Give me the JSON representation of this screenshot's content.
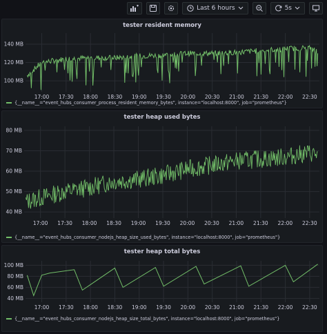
{
  "toolbar": {
    "time_range": "Last 6 hours",
    "refresh_interval": "5s",
    "icons": [
      "add-panel-icon",
      "save-icon",
      "settings-icon",
      "clock-icon",
      "chevron-down-icon",
      "zoom-out-icon",
      "refresh-icon",
      "chevron-down-icon",
      "monitor-icon"
    ]
  },
  "colors": {
    "series": "#73bf69",
    "grid": "#2a2d33",
    "panel": "#181b1f",
    "background": "#111217"
  },
  "chart_data": [
    {
      "type": "line",
      "title": "tester resident memory",
      "y_ticks": [
        "100 MB",
        "120 MB",
        "140 MB"
      ],
      "y_tick_values": [
        100,
        120,
        140
      ],
      "ylim": [
        88,
        152
      ],
      "x_ticks": [
        "17:00",
        "17:30",
        "18:00",
        "18:30",
        "19:00",
        "19:30",
        "20:00",
        "20:30",
        "21:00",
        "21:30",
        "22:00",
        "22:30"
      ],
      "x_range": [
        "16:40",
        "22:42"
      ],
      "grid": true,
      "legend": "bottom-left",
      "series": [
        {
          "name": "{__name__=\"event_hubs_consumer_process_resident_memory_bytes\", instance=\"localhost:8000\", job=\"prometheus\"}",
          "x": [
            "16:42",
            "17:00",
            "17:30",
            "18:00",
            "18:30",
            "19:00",
            "19:30",
            "20:00",
            "20:30",
            "21:00",
            "21:30",
            "22:00",
            "22:30",
            "22:40"
          ],
          "y": [
            106,
            120,
            124,
            125,
            125,
            127,
            128,
            130,
            130,
            131,
            133,
            135,
            136,
            132
          ]
        }
      ]
    },
    {
      "type": "line",
      "title": "tester heap used bytes",
      "y_ticks": [
        "40 MB",
        "50 MB",
        "60 MB",
        "70 MB",
        "80 MB"
      ],
      "y_tick_values": [
        40,
        50,
        60,
        70,
        80
      ],
      "ylim": [
        37,
        82
      ],
      "x_ticks": [
        "17:00",
        "17:30",
        "18:00",
        "18:30",
        "19:00",
        "19:30",
        "20:00",
        "20:30",
        "21:00",
        "21:30",
        "22:00",
        "22:30"
      ],
      "x_range": [
        "16:40",
        "22:42"
      ],
      "grid": true,
      "legend": "bottom-left",
      "series": [
        {
          "name": "{__name__=\"event_hubs_consumer_nodejs_heap_size_used_bytes\", instance=\"localhost:8000\", job=\"prometheus\"}",
          "x": [
            "16:42",
            "17:00",
            "17:30",
            "18:00",
            "18:30",
            "19:00",
            "19:30",
            "20:00",
            "20:30",
            "21:00",
            "21:30",
            "22:00",
            "22:30",
            "22:40"
          ],
          "y": [
            45,
            47,
            50,
            52,
            55,
            56,
            58,
            61,
            63,
            65,
            66,
            67,
            69,
            68
          ]
        }
      ]
    },
    {
      "type": "line",
      "title": "tester heap total bytes",
      "y_ticks": [
        "40 MB",
        "60 MB",
        "80 MB",
        "100 MB"
      ],
      "y_tick_values": [
        40,
        60,
        80,
        100
      ],
      "ylim": [
        33,
        108
      ],
      "x_ticks": [
        "17:00",
        "17:30",
        "18:00",
        "18:30",
        "19:00",
        "19:30",
        "20:00",
        "20:30",
        "21:00",
        "21:30",
        "22:00",
        "22:30"
      ],
      "x_range": [
        "16:40",
        "22:42"
      ],
      "grid": true,
      "legend": "bottom-left",
      "series": [
        {
          "name": "{__name__=\"event_hubs_consumer_nodejs_heap_size_total_bytes\", instance=\"localhost:8000\", job=\"prometheus\"}",
          "x": [
            "16:42",
            "16:50",
            "17:00",
            "17:10",
            "17:40",
            "17:50",
            "18:30",
            "18:40",
            "19:20",
            "19:30",
            "20:10",
            "20:20",
            "21:05",
            "21:15",
            "22:00",
            "22:10",
            "22:40"
          ],
          "y": [
            82,
            45,
            82,
            86,
            92,
            55,
            95,
            60,
            96,
            62,
            98,
            66,
            99,
            62,
            100,
            70,
            102
          ]
        }
      ]
    }
  ]
}
